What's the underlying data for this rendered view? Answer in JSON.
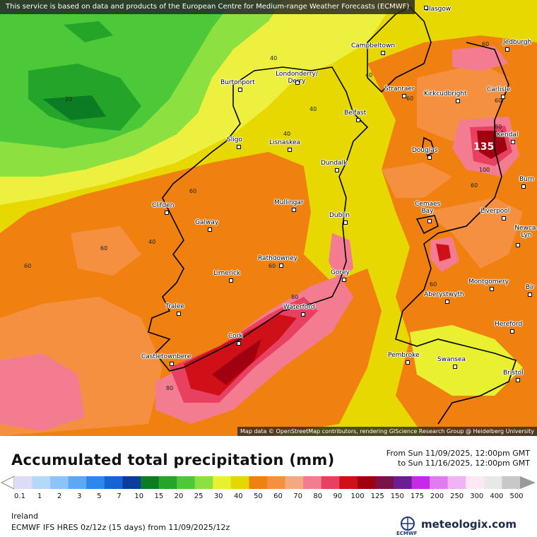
{
  "banner": "This service is based on data and products of the European Centre for Medium-range Weather Forecasts (ECMWF)",
  "attribution": "Map data © OpenStreetMap contributors, rendering GIScience Research Group @ Heidelberg University",
  "title": "Accumulated total precipitation (mm)",
  "range": {
    "from": "From Sun 11/09/2025, 12:00pm GMT",
    "to": "to Sun 11/16/2025, 12:00pm GMT"
  },
  "region": "Ireland",
  "model": "ECMWF IFS HRES 0z/12z (15 days) from 11/09/2025/12z",
  "brand": "meteologix.com",
  "ecmwf_label": "ECMWF",
  "legend": {
    "values": [
      "0.1",
      "1",
      "2",
      "3",
      "5",
      "7",
      "10",
      "15",
      "20",
      "25",
      "30",
      "40",
      "50",
      "60",
      "70",
      "80",
      "90",
      "100",
      "125",
      "150",
      "175",
      "200",
      "250",
      "300",
      "400",
      "500"
    ],
    "colors": [
      "#dcdcf4",
      "#b4d8f8",
      "#8cc4f8",
      "#5ca8f4",
      "#2c88ec",
      "#1464d4",
      "#0c3c9c",
      "#0c7c24",
      "#24a428",
      "#4cc838",
      "#8ce040",
      "#e8f030",
      "#e4d800",
      "#f08010",
      "#f49040",
      "#f4a880",
      "#f47c90",
      "#e84060",
      "#d01018",
      "#a00010",
      "#7c1048",
      "#6c1c94",
      "#c828e8",
      "#e07cf0",
      "#f0b4f4",
      "#ffe8f4",
      "#e8e8e8",
      "#c8c8c8"
    ]
  },
  "peak_value": "135",
  "contour_labels": [
    "20",
    "40",
    "40",
    "40",
    "40",
    "40",
    "60",
    "60",
    "60",
    "60",
    "60",
    "60",
    "60",
    "60",
    "60",
    "80",
    "80",
    "80",
    "100"
  ],
  "cities": [
    {
      "name": "Glasgow"
    },
    {
      "name": "Jedburgh"
    },
    {
      "name": "Campbeltown"
    },
    {
      "name": "Londonderry/ Derry"
    },
    {
      "name": "Burtonport"
    },
    {
      "name": "Stranraer"
    },
    {
      "name": "Kirkcudbright"
    },
    {
      "name": "Carlisle"
    },
    {
      "name": "Belfast"
    },
    {
      "name": "Kendal"
    },
    {
      "name": "Sligo"
    },
    {
      "name": "Lisnaskea"
    },
    {
      "name": "Douglas"
    },
    {
      "name": "Dundalk"
    },
    {
      "name": "Burn"
    },
    {
      "name": "Clifden"
    },
    {
      "name": "Mullingar"
    },
    {
      "name": "Cemaes Bay"
    },
    {
      "name": "Liverpool"
    },
    {
      "name": "Dublin"
    },
    {
      "name": "Galway"
    },
    {
      "name": "Newca- Lyn"
    },
    {
      "name": "Rathdowney"
    },
    {
      "name": "Limerick"
    },
    {
      "name": "Gorey"
    },
    {
      "name": "Montgomery"
    },
    {
      "name": "Bir"
    },
    {
      "name": "Aberystwyth"
    },
    {
      "name": "Tralee"
    },
    {
      "name": "Waterford"
    },
    {
      "name": "Hereford"
    },
    {
      "name": "Cork"
    },
    {
      "name": "Castletownbere"
    },
    {
      "name": "Pembroke"
    },
    {
      "name": "Swansea"
    },
    {
      "name": "Bristol"
    }
  ]
}
